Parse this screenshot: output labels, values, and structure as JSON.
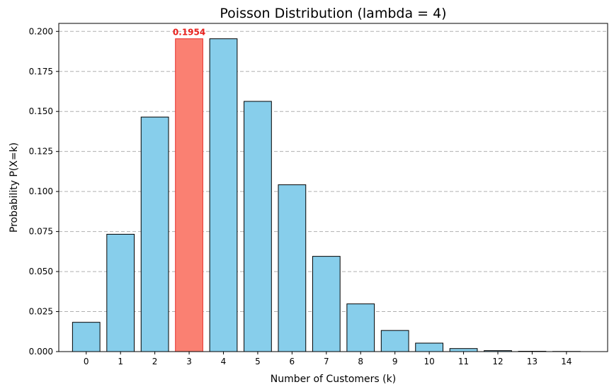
{
  "chart_data": {
    "type": "bar",
    "title": "Poisson Distribution (lambda = 4)",
    "xlabel": "Number of Customers (k)",
    "ylabel": "Probability P(X=k)",
    "categories": [
      "0",
      "1",
      "2",
      "3",
      "4",
      "5",
      "6",
      "7",
      "8",
      "9",
      "10",
      "11",
      "12",
      "13",
      "14"
    ],
    "values": [
      0.0183,
      0.0733,
      0.1465,
      0.1954,
      0.1954,
      0.1563,
      0.1042,
      0.0595,
      0.0298,
      0.0132,
      0.0053,
      0.0019,
      0.0006,
      0.0002,
      0.0001
    ],
    "ylim": [
      0,
      0.205
    ],
    "yticks": [
      "0.000",
      "0.025",
      "0.050",
      "0.075",
      "0.100",
      "0.125",
      "0.150",
      "0.175",
      "0.200"
    ],
    "grid": "y-dashed",
    "highlight": {
      "category": "3",
      "label": "0.1954",
      "fill": "#fa8072",
      "edge": "#e8312d",
      "label_color": "#e8201c"
    },
    "bar_color": "#87ceeb",
    "bar_edge_color": "#000000"
  }
}
